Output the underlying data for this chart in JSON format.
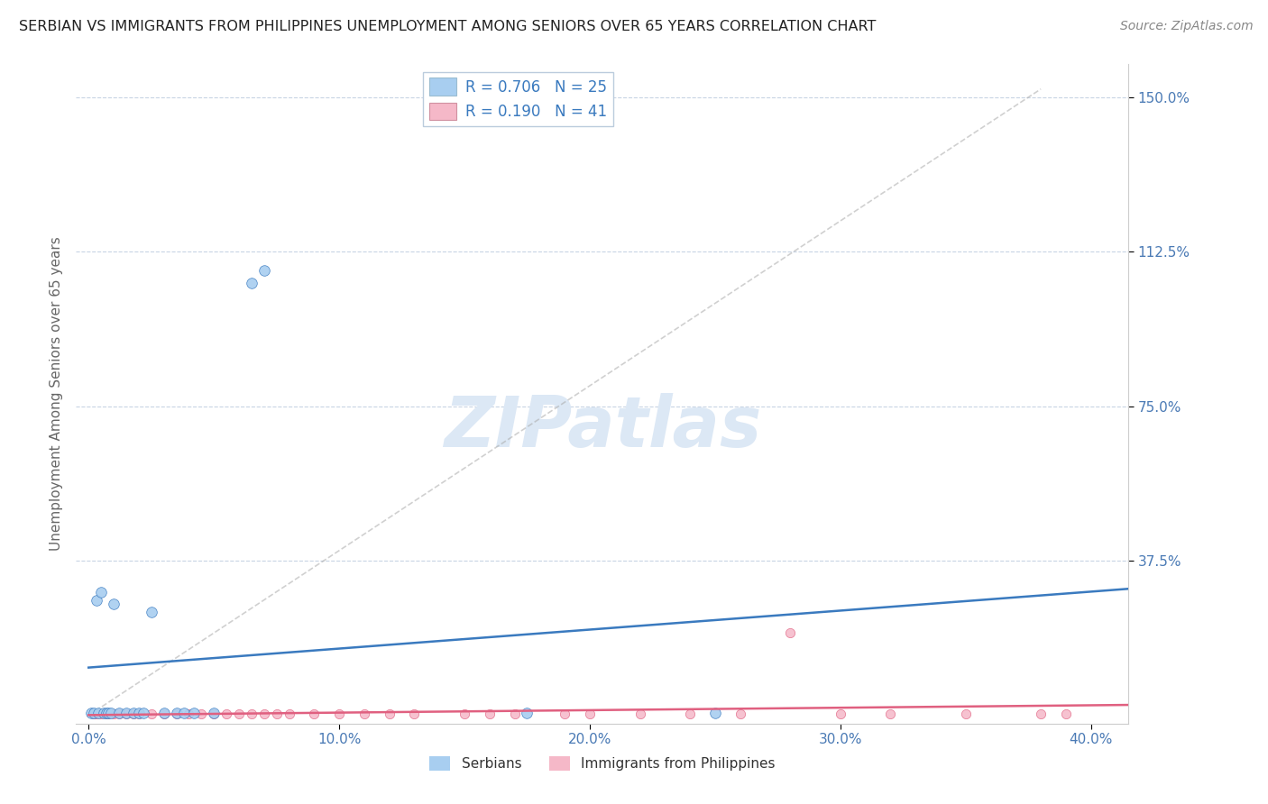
{
  "title": "SERBIAN VS IMMIGRANTS FROM PHILIPPINES UNEMPLOYMENT AMONG SENIORS OVER 65 YEARS CORRELATION CHART",
  "source": "Source: ZipAtlas.com",
  "ylabel": "Unemployment Among Seniors over 65 years",
  "legend_serbian_text": "R = 0.706   N = 25",
  "legend_phil_text": "R = 0.190   N = 41",
  "legend_label_serbian": "Serbians",
  "legend_label_phil": "Immigrants from Philippines",
  "serbian_color": "#a8cef0",
  "phil_color": "#f5b8c8",
  "line_serbian_color": "#3a7abf",
  "line_phil_color": "#e06080",
  "diag_color": "#aaaaaa",
  "watermark": "ZIPatlas",
  "watermark_color": "#dce8f5",
  "background_color": "#ffffff",
  "title_color": "#222222",
  "source_color": "#888888",
  "tick_color": "#4a7ab5",
  "ylabel_color": "#666666",
  "grid_color": "#c8d4e4",
  "legend_text_color": "#3a7abf",
  "legend_phil_color": "#e06080",
  "serbian_x": [
    0.001,
    0.002,
    0.003,
    0.004,
    0.005,
    0.006,
    0.007,
    0.008,
    0.009,
    0.01,
    0.012,
    0.015,
    0.018,
    0.02,
    0.022,
    0.025,
    0.03,
    0.035,
    0.038,
    0.042,
    0.05,
    0.065,
    0.07,
    0.175,
    0.25
  ],
  "serbian_y": [
    0.005,
    0.005,
    0.28,
    0.005,
    0.3,
    0.005,
    0.005,
    0.005,
    0.005,
    0.27,
    0.005,
    0.005,
    0.005,
    0.005,
    0.005,
    0.25,
    0.005,
    0.005,
    0.005,
    0.005,
    0.005,
    1.05,
    1.08,
    0.005,
    0.005
  ],
  "phil_x": [
    0.002,
    0.003,
    0.005,
    0.007,
    0.008,
    0.01,
    0.012,
    0.015,
    0.018,
    0.02,
    0.025,
    0.03,
    0.035,
    0.04,
    0.045,
    0.05,
    0.055,
    0.06,
    0.065,
    0.07,
    0.075,
    0.08,
    0.09,
    0.1,
    0.11,
    0.12,
    0.13,
    0.15,
    0.16,
    0.17,
    0.19,
    0.2,
    0.22,
    0.24,
    0.26,
    0.28,
    0.3,
    0.32,
    0.35,
    0.38,
    0.39
  ],
  "phil_y": [
    0.003,
    0.003,
    0.003,
    0.003,
    0.003,
    0.003,
    0.003,
    0.003,
    0.003,
    0.003,
    0.003,
    0.003,
    0.003,
    0.003,
    0.003,
    0.003,
    0.003,
    0.003,
    0.003,
    0.003,
    0.003,
    0.003,
    0.003,
    0.003,
    0.003,
    0.003,
    0.003,
    0.003,
    0.003,
    0.003,
    0.003,
    0.003,
    0.003,
    0.003,
    0.003,
    0.2,
    0.003,
    0.003,
    0.003,
    0.003,
    0.003
  ],
  "xlim": [
    -0.005,
    0.415
  ],
  "ylim": [
    -0.02,
    1.58
  ],
  "x_tick_vals": [
    0.0,
    0.1,
    0.2,
    0.3,
    0.4
  ],
  "x_tick_labels": [
    "0.0%",
    "10.0%",
    "20.0%",
    "30.0%",
    "40.0%"
  ],
  "y_tick_vals": [
    0.375,
    0.75,
    1.125,
    1.5
  ],
  "y_tick_labels": [
    "37.5%",
    "75.0%",
    "112.5%",
    "150.0%"
  ]
}
